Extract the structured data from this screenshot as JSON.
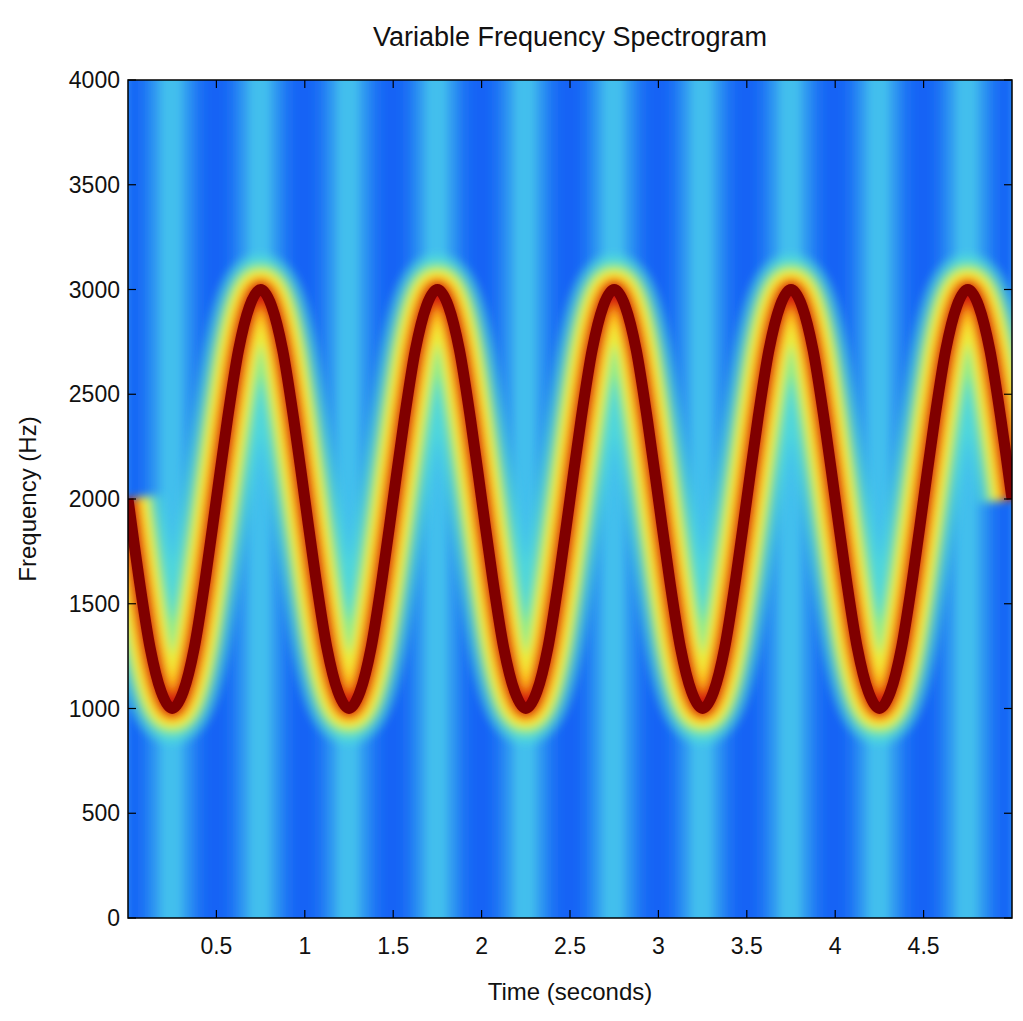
{
  "chart_data": {
    "type": "line",
    "title": "Variable Frequency Spectrogram",
    "x_label": "Time (seconds)",
    "y_label": "Frequency (Hz)",
    "x": [
      0,
      0.0625,
      0.125,
      0.1875,
      0.25,
      0.3125,
      0.375,
      0.4375,
      0.5,
      0.5625,
      0.625,
      0.6875,
      0.75,
      0.8125,
      0.875,
      0.9375,
      1,
      1.0625,
      1.125,
      1.1875,
      1.25,
      1.3125,
      1.375,
      1.4375,
      1.5,
      1.5625,
      1.625,
      1.6875,
      1.75,
      1.8125,
      1.875,
      1.9375,
      2,
      2.0625,
      2.125,
      2.1875,
      2.25,
      2.3125,
      2.375,
      2.4375,
      2.5,
      2.5625,
      2.625,
      2.6875,
      2.75,
      2.8125,
      2.875,
      2.9375,
      3,
      3.0625,
      3.125,
      3.1875,
      3.25,
      3.3125,
      3.375,
      3.4375,
      3.5,
      3.5625,
      3.625,
      3.6875,
      3.75,
      3.8125,
      3.875,
      3.9375,
      4,
      4.0625,
      4.125,
      4.1875,
      4.25,
      4.3125,
      4.375,
      4.4375,
      4.5,
      4.5625,
      4.625,
      4.6875,
      4.75,
      4.8125,
      4.875,
      4.9375,
      5
    ],
    "values": [
      2000,
      1620,
      1290,
      1080,
      1000,
      1080,
      1290,
      1620,
      2000,
      2380,
      2710,
      2920,
      3000,
      2920,
      2710,
      2380,
      2000,
      1620,
      1290,
      1080,
      1000,
      1080,
      1290,
      1620,
      2000,
      2380,
      2710,
      2920,
      3000,
      2920,
      2710,
      2380,
      2000,
      1620,
      1290,
      1080,
      1000,
      1080,
      1290,
      1620,
      2000,
      2380,
      2710,
      2920,
      3000,
      2920,
      2710,
      2380,
      2000,
      1620,
      1290,
      1080,
      1000,
      1080,
      1290,
      1620,
      2000,
      2380,
      2710,
      2920,
      3000,
      2920,
      2710,
      2380,
      2000,
      1620,
      1290,
      1080,
      1000,
      1080,
      1290,
      1620,
      2000,
      2380,
      2710,
      2920,
      3000,
      2920,
      2710,
      2380,
      2000
    ],
    "color": "#800000",
    "xlim": [
      0,
      5
    ],
    "xticks": [
      0.5,
      1,
      1.5,
      2,
      2.5,
      3,
      3.5,
      4,
      4.5
    ],
    "ylim": [
      0,
      4000
    ],
    "yticks": [
      0,
      500,
      1000,
      1500,
      2000,
      2500,
      3000,
      3500,
      4000
    ],
    "grid": false
  }
}
